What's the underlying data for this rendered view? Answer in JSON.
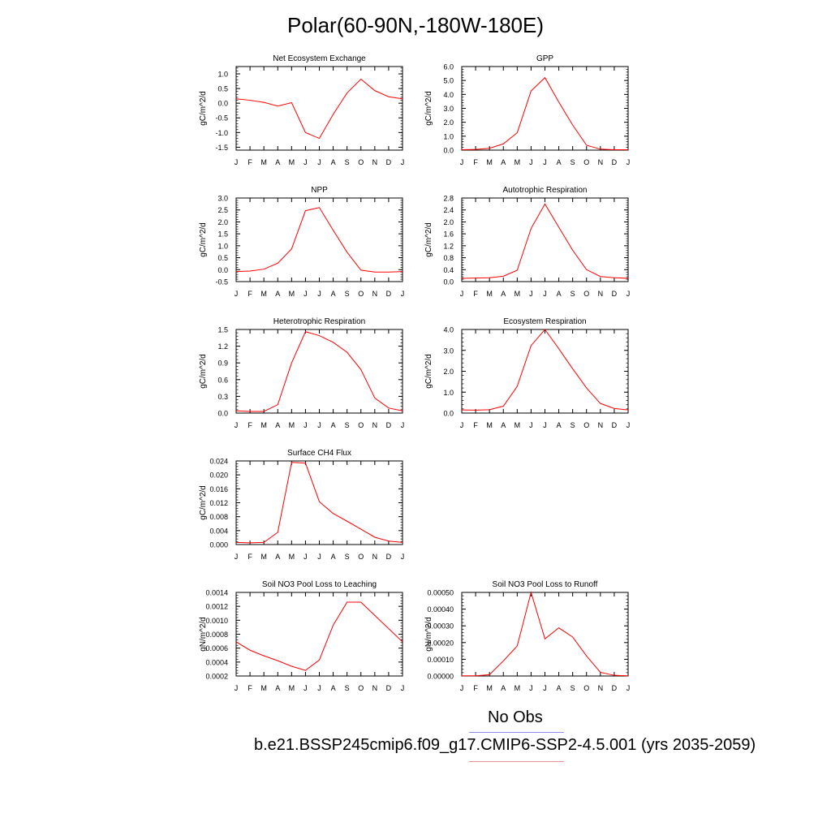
{
  "title": "Polar(60-90N,-180W-180E)",
  "legend": {
    "obs_label": "No Obs",
    "case_label": "b.e21.BSSP245cmip6.f09_g17.CMIP6-SSP2-4.5.001 (yrs 2035-2059)",
    "obs_color": "#8c8cf0",
    "case_color": "#f09090"
  },
  "line_color": "#ff0000",
  "chart_data": [
    {
      "type": "line",
      "title": "Net Ecosystem Exchange",
      "ylabel": "gC/m^2/d",
      "x": [
        "J",
        "F",
        "M",
        "A",
        "M",
        "J",
        "J",
        "A",
        "S",
        "O",
        "N",
        "D",
        "J"
      ],
      "ylim": [
        -1.6,
        1.25
      ],
      "yticks": [
        "1.0",
        "0.5",
        "0.0",
        "-0.5",
        "-1.0",
        "-1.5"
      ],
      "series": [
        {
          "values": [
            0.15,
            0.1,
            0.03,
            -0.1,
            0.02,
            -1.0,
            -1.2,
            -0.38,
            0.35,
            0.82,
            0.43,
            0.22,
            0.15
          ]
        }
      ]
    },
    {
      "type": "line",
      "title": "GPP",
      "ylabel": "gC/m^2/d",
      "x": [
        "J",
        "F",
        "M",
        "A",
        "M",
        "J",
        "J",
        "A",
        "S",
        "O",
        "N",
        "D",
        "J"
      ],
      "ylim": [
        0,
        6
      ],
      "yticks": [
        "6.0",
        "5.0",
        "4.0",
        "3.0",
        "2.0",
        "1.0",
        "0.0"
      ],
      "series": [
        {
          "values": [
            0.03,
            0.05,
            0.13,
            0.45,
            1.25,
            4.25,
            5.2,
            3.45,
            1.8,
            0.35,
            0.07,
            0.03,
            0.03
          ]
        }
      ]
    },
    {
      "type": "line",
      "title": "NPP",
      "ylabel": "gC/m^2/d",
      "x": [
        "J",
        "F",
        "M",
        "A",
        "M",
        "J",
        "J",
        "A",
        "S",
        "O",
        "N",
        "D",
        "J"
      ],
      "ylim": [
        -0.5,
        3.0
      ],
      "yticks": [
        "3.0",
        "2.5",
        "2.0",
        "1.5",
        "1.0",
        "0.5",
        "0.0",
        "-0.5"
      ],
      "series": [
        {
          "values": [
            -0.08,
            -0.06,
            0.02,
            0.27,
            0.87,
            2.47,
            2.6,
            1.65,
            0.73,
            -0.02,
            -0.1,
            -0.1,
            -0.08
          ]
        }
      ]
    },
    {
      "type": "line",
      "title": "Autotrophic Respiration",
      "ylabel": "gC/m^2/d",
      "x": [
        "J",
        "F",
        "M",
        "A",
        "M",
        "J",
        "J",
        "A",
        "S",
        "O",
        "N",
        "D",
        "J"
      ],
      "ylim": [
        0,
        2.8
      ],
      "yticks": [
        "2.8",
        "2.4",
        "2.0",
        "1.6",
        "1.2",
        "0.8",
        "0.4",
        "0.0"
      ],
      "series": [
        {
          "values": [
            0.11,
            0.12,
            0.13,
            0.18,
            0.38,
            1.78,
            2.6,
            1.82,
            1.05,
            0.4,
            0.17,
            0.13,
            0.11
          ]
        }
      ]
    },
    {
      "type": "line",
      "title": "Heterotrophic Respiration",
      "ylabel": "gC/m^2/d",
      "x": [
        "J",
        "F",
        "M",
        "A",
        "M",
        "J",
        "J",
        "A",
        "S",
        "O",
        "N",
        "D",
        "J"
      ],
      "ylim": [
        0,
        1.5
      ],
      "yticks": [
        "1.5",
        "1.2",
        "0.9",
        "0.6",
        "0.3",
        "0.0"
      ],
      "series": [
        {
          "values": [
            0.04,
            0.03,
            0.03,
            0.15,
            0.9,
            1.46,
            1.39,
            1.27,
            1.09,
            0.78,
            0.27,
            0.09,
            0.04
          ]
        }
      ]
    },
    {
      "type": "line",
      "title": "Ecosystem Respiration",
      "ylabel": "gC/m^2/d",
      "x": [
        "J",
        "F",
        "M",
        "A",
        "M",
        "J",
        "J",
        "A",
        "S",
        "O",
        "N",
        "D",
        "J"
      ],
      "ylim": [
        0,
        4.0
      ],
      "yticks": [
        "4.0",
        "3.0",
        "2.0",
        "1.0",
        "0.0"
      ],
      "series": [
        {
          "values": [
            0.15,
            0.14,
            0.16,
            0.33,
            1.28,
            3.23,
            4.0,
            3.08,
            2.12,
            1.2,
            0.46,
            0.22,
            0.15
          ]
        }
      ]
    },
    {
      "type": "line",
      "title": "Surface CH4 Flux",
      "ylabel": "gC/m^2/d",
      "x": [
        "J",
        "F",
        "M",
        "A",
        "M",
        "J",
        "J",
        "A",
        "S",
        "O",
        "N",
        "D",
        "J"
      ],
      "ylim": [
        0,
        0.024
      ],
      "yticks": [
        "0.024",
        "0.020",
        "0.016",
        "0.012",
        "0.008",
        "0.004",
        "0.000"
      ],
      "series": [
        {
          "values": [
            0.0006,
            0.0005,
            0.0006,
            0.0035,
            0.0236,
            0.0234,
            0.0123,
            0.0089,
            0.0067,
            0.0044,
            0.0021,
            0.001,
            0.0006
          ]
        }
      ]
    },
    {
      "type": "line",
      "title": "Soil NO3 Pool Loss to Leaching",
      "ylabel": "gN/m^2/d",
      "x": [
        "J",
        "F",
        "M",
        "A",
        "M",
        "J",
        "J",
        "A",
        "S",
        "O",
        "N",
        "D",
        "J"
      ],
      "ylim": [
        0.0002,
        0.0014
      ],
      "yticks": [
        "0.0014",
        "0.0012",
        "0.0010",
        "0.0008",
        "0.0006",
        "0.0004",
        "0.0002"
      ],
      "series": [
        {
          "values": [
            0.00069,
            0.00057,
            0.00049,
            0.00042,
            0.00034,
            0.00028,
            0.00043,
            0.00093,
            0.00126,
            0.00126,
            0.00107,
            0.00088,
            0.00069
          ]
        }
      ]
    },
    {
      "type": "line",
      "title": "Soil NO3 Pool Loss to Runoff",
      "ylabel": "gN/m^2/d",
      "x": [
        "J",
        "F",
        "M",
        "A",
        "M",
        "J",
        "J",
        "A",
        "S",
        "O",
        "N",
        "D",
        "J"
      ],
      "ylim": [
        0,
        0.0005
      ],
      "yticks": [
        "0.00050",
        "0.00040",
        "0.00030",
        "0.00020",
        "0.00010",
        "0.00000"
      ],
      "series": [
        {
          "values": [
            1e-06,
            1e-06,
            8e-06,
            9e-05,
            0.00018,
            0.0005,
            0.000222,
            0.000288,
            0.000233,
            0.00012,
            2.2e-05,
            4e-06,
            1e-06
          ]
        }
      ]
    }
  ]
}
